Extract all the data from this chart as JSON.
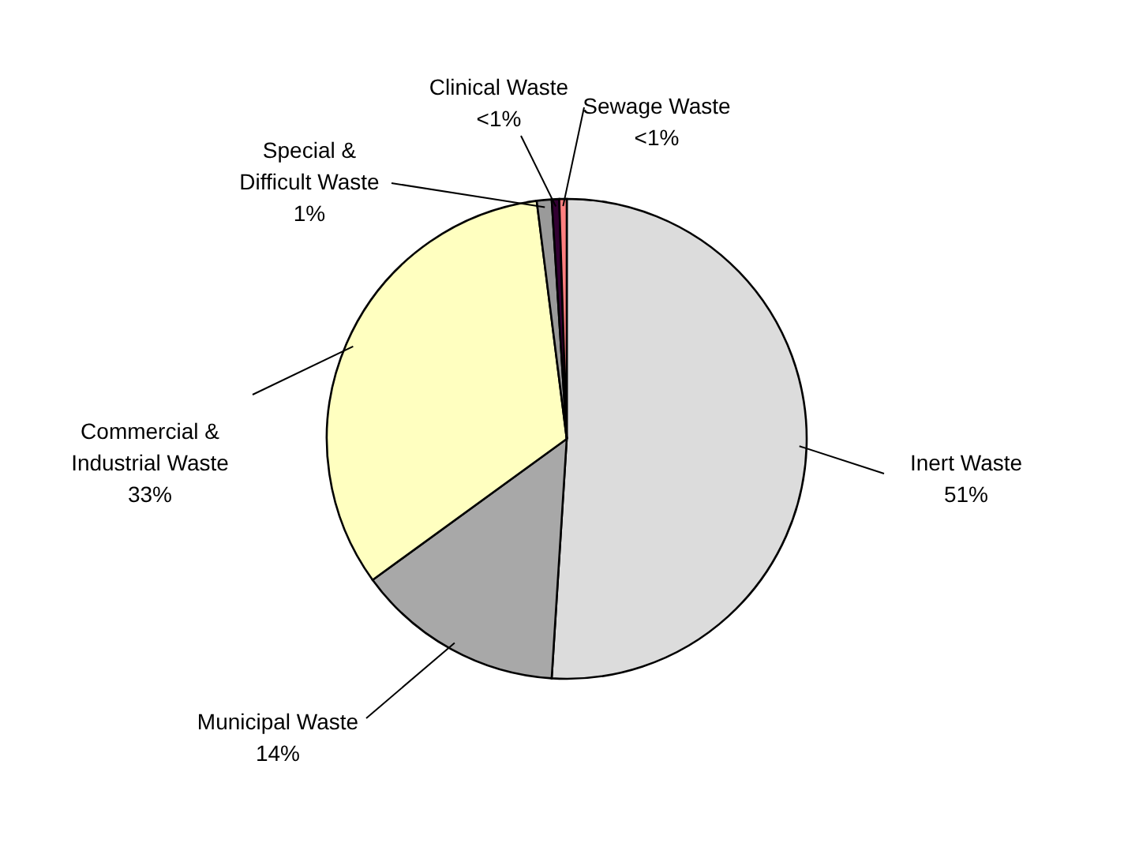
{
  "chart_data": {
    "type": "pie",
    "categories": [
      "Inert Waste",
      "Municipal Waste",
      "Commercial & Industrial Waste",
      "Special & Difficult Waste",
      "Clinical Waste",
      "Sewage Waste"
    ],
    "values": [
      51,
      14,
      33,
      1,
      0.5,
      0.5
    ],
    "value_labels": [
      "51%",
      "14%",
      "33%",
      "1%",
      "<1%",
      "<1%"
    ],
    "colors": [
      "#dcdcdc",
      "#a8a8a8",
      "#ffffc0",
      "#9a9a9a",
      "#330033",
      "#ff8080"
    ]
  }
}
